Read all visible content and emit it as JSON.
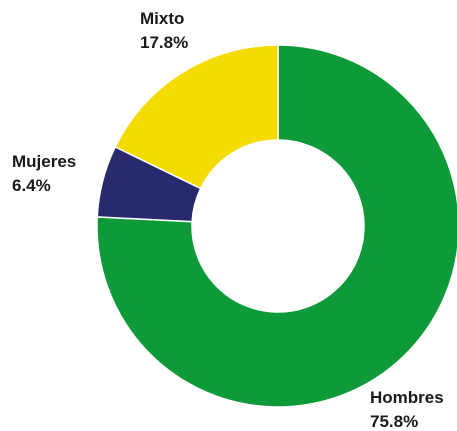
{
  "chart_data": {
    "type": "pie",
    "title": "",
    "donut": true,
    "start_angle_deg": 0,
    "direction": "clockwise",
    "legend": "none",
    "slices": [
      {
        "label": "Hombres",
        "value": 75.8,
        "value_text": "75.8%",
        "color": "#0e9a38"
      },
      {
        "label": "Mujeres",
        "value": 6.4,
        "value_text": "6.4%",
        "color": "#282a6d"
      },
      {
        "label": "Mixto",
        "value": 17.8,
        "value_text": "17.8%",
        "color": "#f5dc00"
      }
    ]
  }
}
